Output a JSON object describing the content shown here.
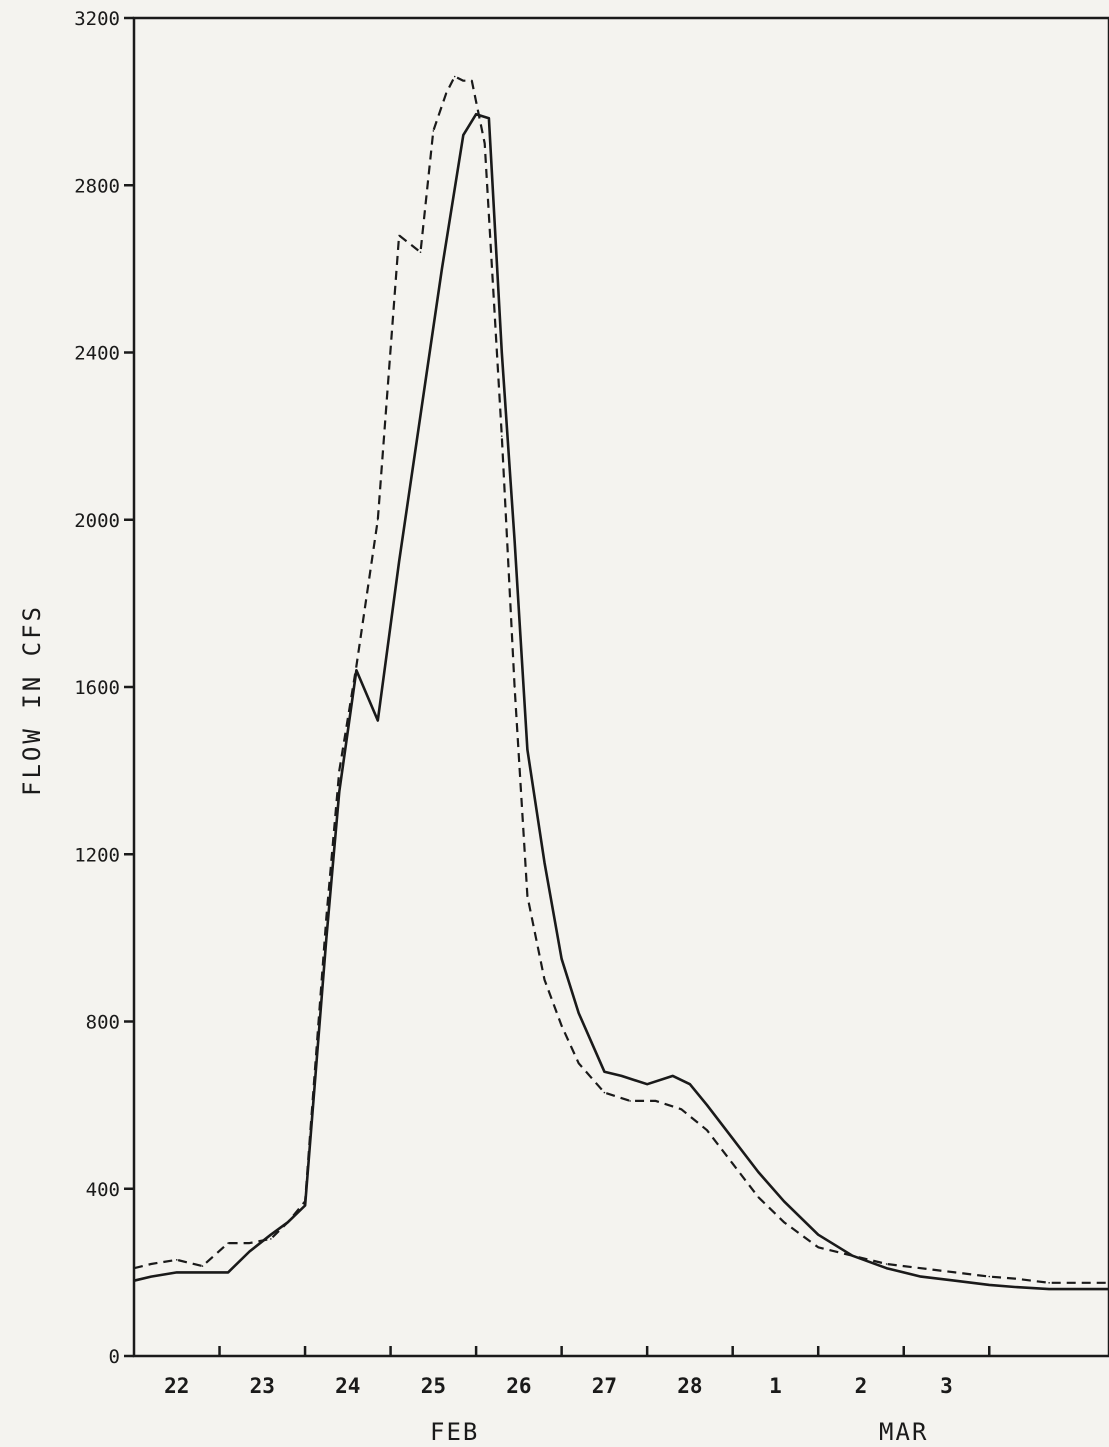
{
  "chart_data": {
    "type": "line",
    "title": "",
    "ylabel": "FLOW IN CFS",
    "xlabel": "",
    "ylim": [
      0,
      3200
    ],
    "xlim": [
      21.5,
      32.9
    ],
    "grid": false,
    "yticks": [
      0,
      400,
      800,
      1200,
      1600,
      2000,
      2400,
      2800,
      3200
    ],
    "ytick_labels": [
      "0",
      "400",
      "800",
      "1200",
      "1600",
      "2000",
      "2400",
      "2800",
      "3200"
    ],
    "categories": [
      "22",
      "23",
      "24",
      "25",
      "26",
      "27",
      "28",
      "1",
      "2",
      "3"
    ],
    "category_positions": [
      22,
      23,
      24,
      25,
      26,
      27,
      28,
      29,
      30,
      31
    ],
    "month_labels": [
      {
        "text": "FEB",
        "at": 25.25
      },
      {
        "text": "MAR",
        "at": 30.5
      }
    ],
    "series": [
      {
        "style": "solid",
        "x": [
          21.5,
          21.7,
          22.0,
          22.3,
          22.6,
          22.85,
          23.1,
          23.3,
          23.5,
          23.75,
          23.9,
          24.1,
          24.35,
          24.6,
          24.85,
          25.1,
          25.35,
          25.5,
          25.65,
          25.8,
          25.95,
          26.1,
          26.3,
          26.5,
          26.7,
          27.0,
          27.2,
          27.5,
          27.8,
          28.0,
          28.2,
          28.5,
          28.8,
          29.1,
          29.5,
          29.9,
          30.3,
          30.7,
          31.1,
          31.5,
          31.8,
          32.2,
          32.5,
          32.9
        ],
        "y": [
          180,
          190,
          200,
          200,
          200,
          250,
          290,
          320,
          360,
          1000,
          1350,
          1640,
          1520,
          1900,
          2250,
          2600,
          2920,
          2970,
          2960,
          2400,
          1950,
          1450,
          1180,
          950,
          820,
          680,
          670,
          650,
          670,
          650,
          600,
          520,
          440,
          370,
          290,
          240,
          210,
          190,
          180,
          170,
          165,
          160,
          160,
          160
        ]
      },
      {
        "style": "dashed",
        "x": [
          21.5,
          21.7,
          22.0,
          22.3,
          22.6,
          22.85,
          23.1,
          23.3,
          23.5,
          23.75,
          23.9,
          24.1,
          24.35,
          24.6,
          24.85,
          25.0,
          25.15,
          25.25,
          25.35,
          25.45,
          25.5,
          25.6,
          25.8,
          25.95,
          26.1,
          26.3,
          26.5,
          26.7,
          27.0,
          27.3,
          27.6,
          27.9,
          28.2,
          28.5,
          28.8,
          29.1,
          29.5,
          29.9,
          30.3,
          30.7,
          31.1,
          31.5,
          31.8,
          32.2,
          32.5,
          32.9
        ],
        "y": [
          210,
          220,
          230,
          215,
          270,
          270,
          280,
          320,
          370,
          1050,
          1400,
          1650,
          2000,
          2680,
          2640,
          2930,
          3020,
          3060,
          3050,
          3050,
          3000,
          2900,
          2200,
          1600,
          1100,
          900,
          790,
          700,
          630,
          610,
          610,
          590,
          540,
          460,
          380,
          320,
          260,
          240,
          220,
          210,
          200,
          190,
          185,
          175,
          175,
          175
        ]
      }
    ]
  }
}
